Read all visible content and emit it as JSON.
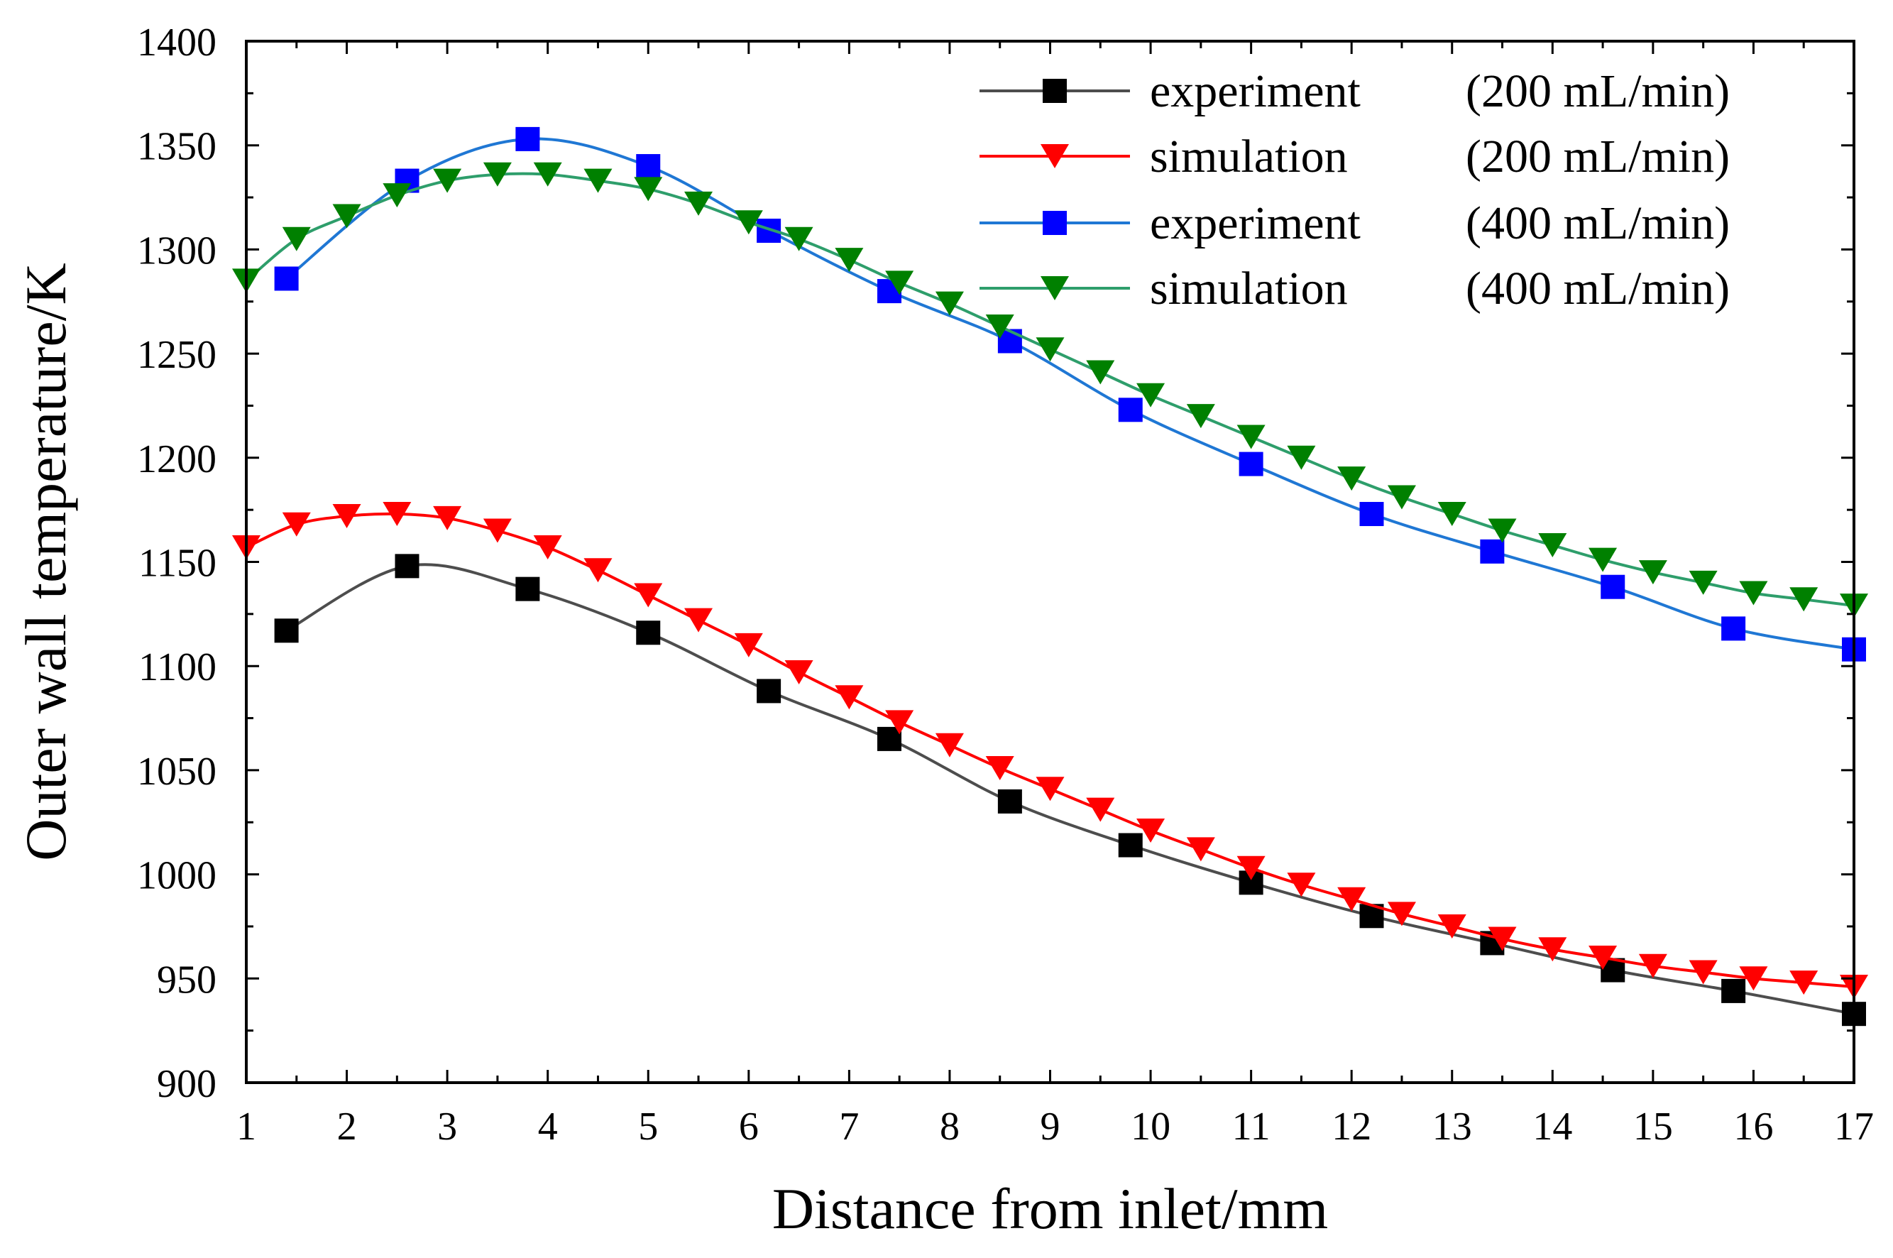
{
  "chart_data": {
    "type": "line",
    "title": "",
    "xlabel": "Distance from inlet/mm",
    "ylabel": "Outer wall temperature/K",
    "xlim": [
      1,
      17
    ],
    "ylim": [
      900,
      1400
    ],
    "xticks": [
      1,
      2,
      3,
      4,
      5,
      6,
      7,
      8,
      9,
      10,
      11,
      12,
      13,
      14,
      15,
      16,
      17
    ],
    "yticks": [
      900,
      950,
      1000,
      1050,
      1100,
      1150,
      1200,
      1250,
      1300,
      1350,
      1400
    ],
    "xtick_labels": [
      "1",
      "2",
      "3",
      "4",
      "5",
      "6",
      "7",
      "8",
      "9",
      "10",
      "11",
      "12",
      "13",
      "14",
      "15",
      "16",
      "17"
    ],
    "ytick_labels": [
      "900",
      "950",
      "1000",
      "1050",
      "1100",
      "1150",
      "1200",
      "1250",
      "1300",
      "1350",
      "1400"
    ],
    "grid": false,
    "legend_position": "top-right",
    "series": [
      {
        "name": "experiment (200 mL/min)",
        "legend_name": "experiment",
        "legend_rate": "(200 mL/min)",
        "marker": "square",
        "line_color": "#4d4d4d",
        "marker_color": "#000000",
        "x": [
          1.4,
          2.6,
          3.8,
          5.0,
          6.2,
          7.4,
          8.6,
          9.8,
          11.0,
          12.2,
          13.4,
          14.6,
          15.8,
          17.0
        ],
        "y": [
          1117,
          1148,
          1137,
          1116,
          1088,
          1065,
          1035,
          1014,
          996,
          980,
          967,
          954,
          944,
          933
        ]
      },
      {
        "name": "simulation (200 mL/min)",
        "legend_name": "simulation",
        "legend_rate": "(200 mL/min)",
        "marker": "triangle-down",
        "line_color": "#ff0000",
        "marker_color": "#ff0000",
        "x": [
          1.0,
          1.5,
          2.0,
          2.5,
          3.0,
          3.5,
          4.0,
          4.5,
          5.0,
          5.5,
          6.0,
          6.5,
          7.0,
          7.5,
          8.0,
          8.5,
          9.0,
          9.5,
          10.0,
          10.5,
          11.0,
          11.5,
          12.0,
          12.5,
          13.0,
          13.5,
          14.0,
          14.5,
          15.0,
          15.5,
          16.0,
          16.5,
          17.0
        ],
        "y": [
          1157,
          1168,
          1172,
          1173,
          1171,
          1165,
          1157,
          1146,
          1134,
          1122,
          1110,
          1097,
          1085,
          1073,
          1062,
          1051,
          1041,
          1031,
          1021,
          1012,
          1003,
          995,
          988,
          981,
          975,
          969,
          964,
          960,
          956,
          953,
          950,
          948,
          946
        ]
      },
      {
        "name": "experiment (400 mL/min)",
        "legend_name": "experiment",
        "legend_rate": "(400 mL/min)",
        "marker": "square",
        "line_color": "#1f77d4",
        "marker_color": "#0000ff",
        "x": [
          1.4,
          2.6,
          3.8,
          5.0,
          6.2,
          7.4,
          8.6,
          9.8,
          11.0,
          12.2,
          13.4,
          14.6,
          15.8,
          17.0
        ],
        "y": [
          1286,
          1333,
          1353,
          1340,
          1309,
          1280,
          1256,
          1223,
          1197,
          1173,
          1155,
          1138,
          1118,
          1108
        ]
      },
      {
        "name": "simulation (400 mL/min)",
        "legend_name": "simulation",
        "legend_rate": "(400 mL/min)",
        "marker": "triangle-down",
        "line_color": "#2e9e6b",
        "marker_color": "#008000",
        "x": [
          1.0,
          1.5,
          2.0,
          2.5,
          3.0,
          3.5,
          4.0,
          4.5,
          5.0,
          5.5,
          6.0,
          6.5,
          7.0,
          7.5,
          8.0,
          8.5,
          9.0,
          9.5,
          10.0,
          10.5,
          11.0,
          11.5,
          12.0,
          12.5,
          13.0,
          13.5,
          14.0,
          14.5,
          15.0,
          15.5,
          16.0,
          16.5,
          17.0
        ],
        "y": [
          1285,
          1305,
          1316,
          1326,
          1333,
          1336,
          1336,
          1333,
          1329,
          1322,
          1313,
          1305,
          1295,
          1284,
          1274,
          1263,
          1252,
          1241,
          1230,
          1220,
          1210,
          1200,
          1190,
          1181,
          1173,
          1165,
          1158,
          1151,
          1145,
          1140,
          1135,
          1132,
          1129
        ]
      }
    ]
  }
}
